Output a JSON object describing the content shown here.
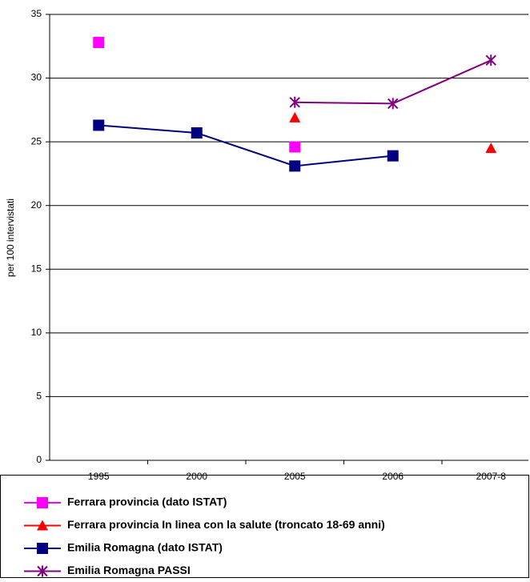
{
  "chart_data": {
    "type": "line",
    "y_label": "per 100 intervistati",
    "categories": [
      "1995",
      "2000",
      "2005",
      "2006",
      "2007-8"
    ],
    "series": [
      {
        "name": "Ferrara provincia (dato ISTAT)",
        "color": "#ff00ff",
        "marker": "square",
        "line": false,
        "values": [
          32.8,
          null,
          24.6,
          null,
          null
        ]
      },
      {
        "name": "Ferrara provincia In linea con la salute (troncato 18-69 anni)",
        "color": "#ff0000",
        "marker": "triangle",
        "line": true,
        "values": [
          null,
          null,
          26.9,
          null,
          24.5
        ]
      },
      {
        "name": "Emilia Romagna (dato ISTAT)",
        "color": "#000080",
        "marker": "square",
        "line": true,
        "values": [
          26.3,
          25.7,
          23.1,
          23.9,
          null
        ]
      },
      {
        "name": "Emilia Romagna PASSI",
        "color": "#800080",
        "marker": "asterisk",
        "line": true,
        "values": [
          null,
          null,
          28.1,
          28.0,
          31.4
        ]
      }
    ],
    "ylim": [
      0,
      35
    ],
    "yticks": [
      0,
      5,
      10,
      15,
      20,
      25,
      30,
      35
    ],
    "grid": true
  }
}
